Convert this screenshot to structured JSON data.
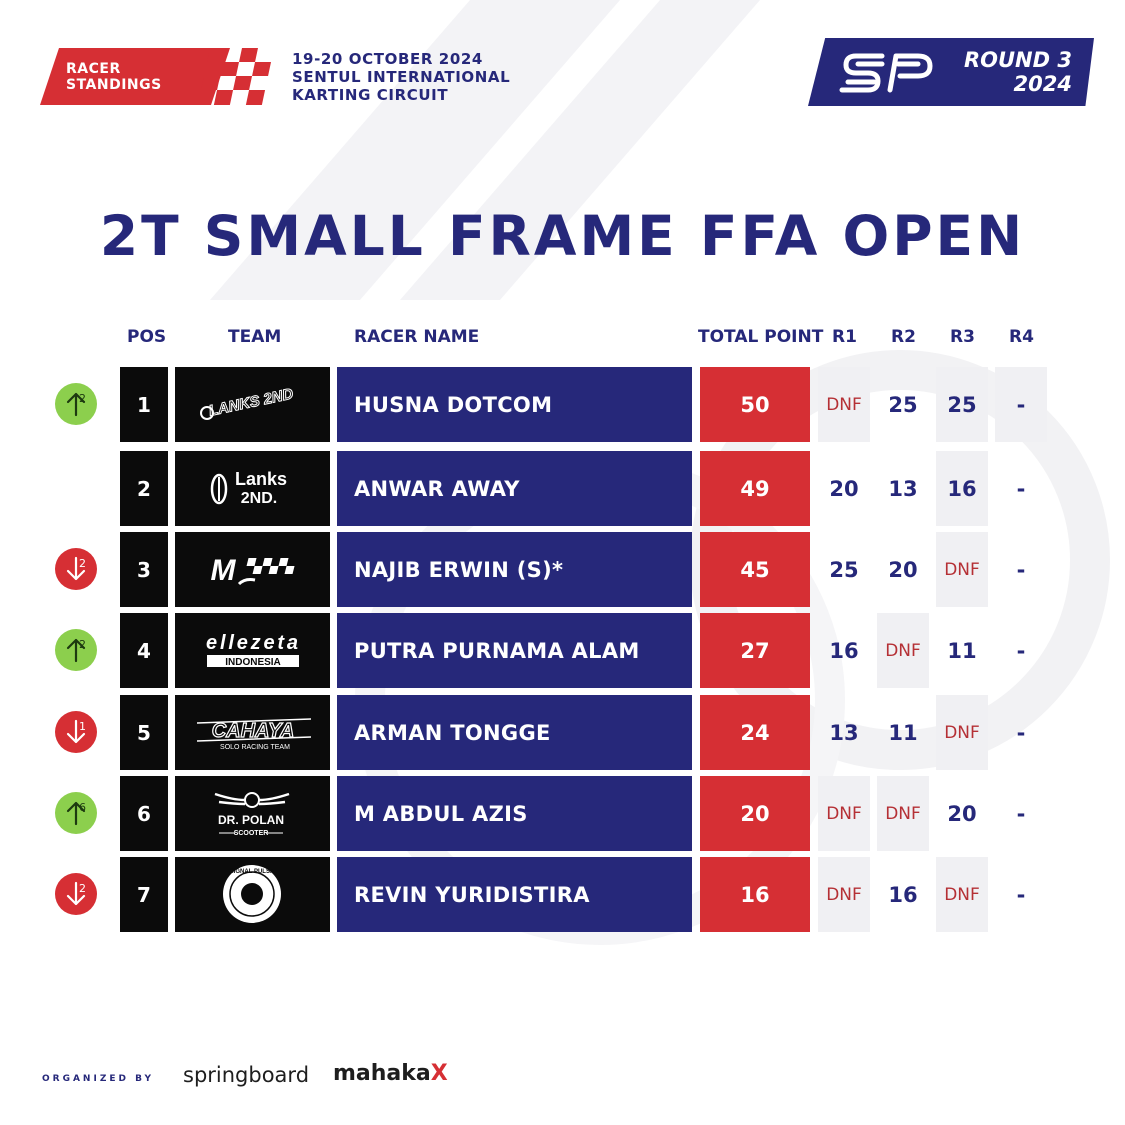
{
  "header": {
    "badge_line1": "RACER",
    "badge_line2": "STANDINGS",
    "event_date": "19-20 OCTOBER 2024",
    "venue_line1": "SENTUL INTERNATIONAL",
    "venue_line2": "KARTING CIRCUIT",
    "round_line1": "ROUND 3",
    "round_line2": "2024",
    "sp_logo_icon": "sp-logo-icon"
  },
  "title": "2T SMALL FRAME FFA OPEN",
  "columns": {
    "pos": "POS",
    "team": "TEAM",
    "racer": "RACER NAME",
    "total": "TOTAL POINT",
    "r1": "R1",
    "r2": "R2",
    "r3": "R3",
    "r4": "R4"
  },
  "colors": {
    "navy": "#26287a",
    "red": "#d62f34",
    "green": "#8ccf4d",
    "black": "#0b0b0b"
  },
  "rows": [
    {
      "pos": "1",
      "move": "up",
      "move_n": "2",
      "team_logo": "lanks-2nd-script",
      "team_text": "LANKS 2ND",
      "name": "HUSNA DOTCOM",
      "total": "50",
      "r1": "DNF",
      "r2": "25",
      "r3": "25",
      "r4": "-"
    },
    {
      "pos": "2",
      "move": "none",
      "move_n": "",
      "team_logo": "lanks-2nd",
      "team_text": "Lanks 2ND.",
      "name": "ANWAR AWAY",
      "total": "49",
      "r1": "20",
      "r2": "13",
      "r3": "16",
      "r4": "-"
    },
    {
      "pos": "3",
      "move": "down",
      "move_n": "2",
      "team_logo": "mjs",
      "team_text": "MJS",
      "name": "NAJIB ERWIN (S)*",
      "total": "45",
      "r1": "25",
      "r2": "20",
      "r3": "DNF",
      "r4": "-"
    },
    {
      "pos": "4",
      "move": "up",
      "move_n": "2",
      "team_logo": "ellezeta",
      "team_text": "ellezeta INDONESIA",
      "name": "PUTRA PURNAMA ALAM",
      "total": "27",
      "r1": "16",
      "r2": "DNF",
      "r3": "11",
      "r4": "-"
    },
    {
      "pos": "5",
      "move": "down",
      "move_n": "1",
      "team_logo": "cahaya",
      "team_text": "CAHAYA",
      "name": "ARMAN TONGGE",
      "total": "24",
      "r1": "13",
      "r2": "11",
      "r3": "DNF",
      "r4": "-"
    },
    {
      "pos": "6",
      "move": "up",
      "move_n": "6",
      "team_logo": "dr-polan",
      "team_text": "DR. POLAN SCOOTER",
      "name": "M ABDUL AZIS",
      "total": "20",
      "r1": "DNF",
      "r2": "DNF",
      "r3": "20",
      "r4": "-"
    },
    {
      "pos": "7",
      "move": "down",
      "move_n": "2",
      "team_logo": "signal-pulsa",
      "team_text": "SIGNAL PULSA",
      "name": "REVIN YURIDISTIRA",
      "total": "16",
      "r1": "DNF",
      "r2": "16",
      "r3": "DNF",
      "r4": "-"
    }
  ],
  "footer": {
    "organized_by": "ORGANIZED BY",
    "sponsor1": "springboard",
    "sponsor2": "mahaka",
    "sponsor2_x": "X"
  }
}
